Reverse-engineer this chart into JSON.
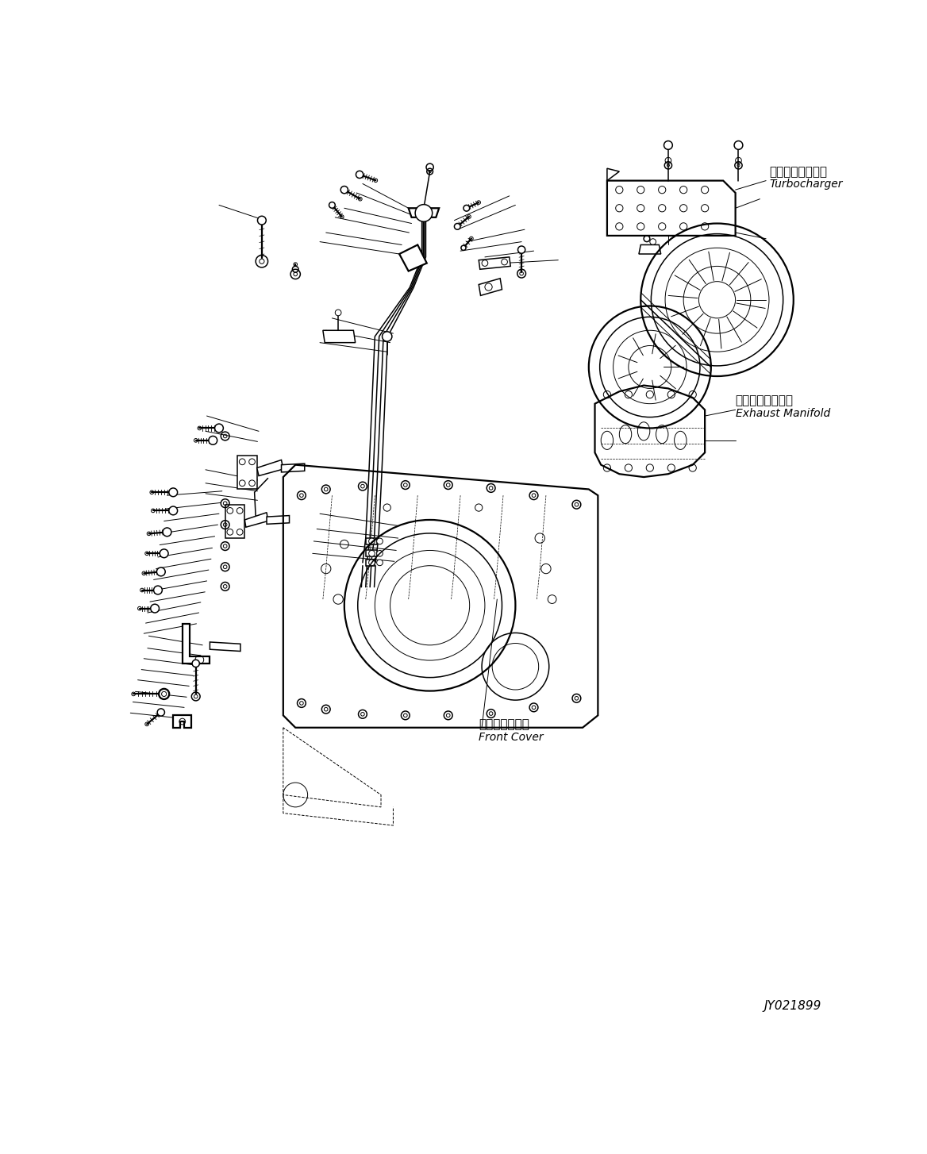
{
  "bg_color": "#ffffff",
  "line_color": "#000000",
  "fig_width": 11.68,
  "fig_height": 14.54,
  "dpi": 100,
  "title_text": "JY021899",
  "labels": {
    "turbocharger_jp": "ターボチャージャ",
    "turbocharger_en": "Turbocharger",
    "exhaust_manifold_jp": "排気マニホールド",
    "exhaust_manifold_en": "Exhaust Manifold",
    "front_cover_jp": "フロントカバー",
    "front_cover_en": "Front Cover"
  }
}
